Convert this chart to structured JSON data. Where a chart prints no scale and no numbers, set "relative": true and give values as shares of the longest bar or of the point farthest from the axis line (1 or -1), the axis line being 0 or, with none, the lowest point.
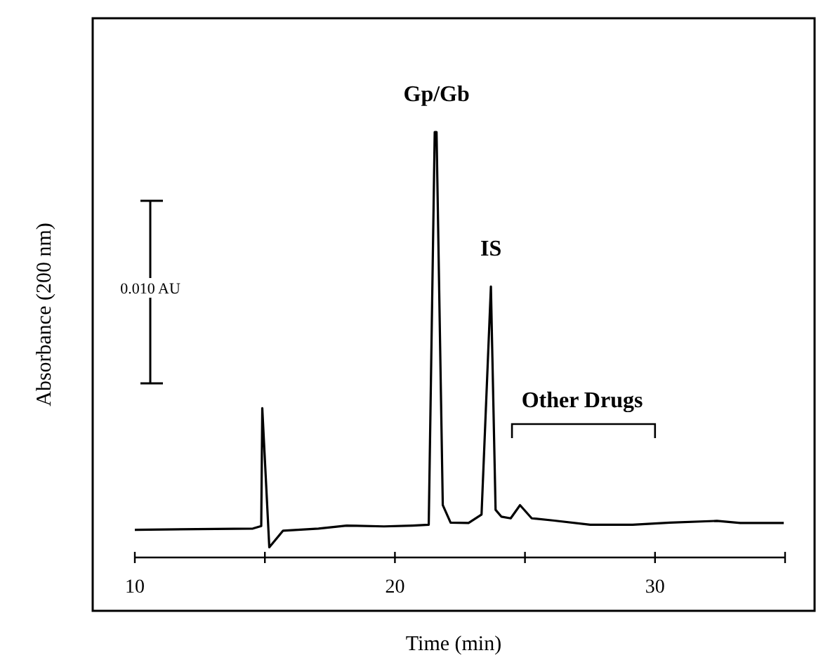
{
  "chart_data": {
    "type": "line",
    "relative": true,
    "xlabel": "Time (min)",
    "ylabel": "Absorbance (200 nm)",
    "tick_labels": "x",
    "marker": "none",
    "line_style": "solid",
    "xlim": [
      10,
      35
    ],
    "xticks": [
      10,
      {
        "value": 15,
        "label": null
      },
      20,
      {
        "value": 25,
        "label": null
      },
      30,
      {
        "value": 35,
        "label": null
      }
    ],
    "series": [
      {
        "color": "#000000",
        "x": [
          10,
          14.54,
          14.86,
          14.9,
          15.17,
          15.7,
          17.06,
          18.14,
          19.58,
          20.67,
          21.3,
          21.53,
          21.6,
          21.84,
          22.14,
          22.83,
          23.33,
          23.69,
          23.87,
          24.09,
          24.45,
          24.81,
          25.26,
          26.07,
          27.51,
          29.14,
          30.58,
          32.38,
          33.28,
          34.95
        ],
        "values": [
          0.065,
          0.068,
          0.074,
          0.351,
          0.024,
          0.063,
          0.068,
          0.075,
          0.073,
          0.075,
          0.077,
          1,
          1,
          0.123,
          0.082,
          0.081,
          0.101,
          0.637,
          0.112,
          0.096,
          0.092,
          0.123,
          0.092,
          0.087,
          0.077,
          0.077,
          0.082,
          0.086,
          0.081,
          0.081
        ]
      }
    ],
    "annotations": [
      {
        "text": "Gp/Gb",
        "x": 21.6,
        "y": 1
      },
      {
        "text": "IS",
        "x": 23.69,
        "y": 0.637
      },
      "Other Drugs",
      "0.010 AU"
    ]
  }
}
